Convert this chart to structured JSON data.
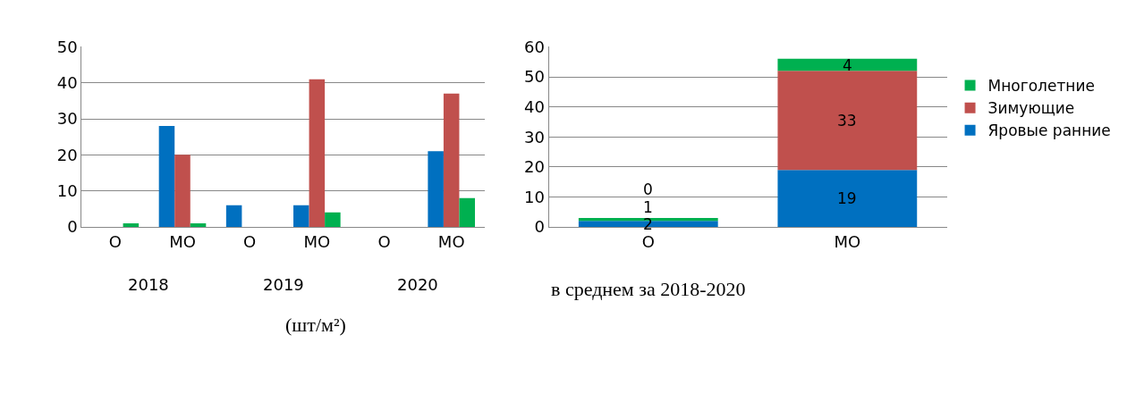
{
  "chart_data": [
    {
      "type": "bar",
      "xlabel": "(шт/м²)",
      "categories": [
        "О",
        "МО",
        "О",
        "МО",
        "О",
        "МО"
      ],
      "annotations": [
        "2018",
        "2019",
        "2020"
      ],
      "series": [
        {
          "color": "#0070c0",
          "values": [
            0,
            28,
            6,
            6,
            0,
            21
          ]
        },
        {
          "color": "#c0504d",
          "values": [
            0,
            20,
            0,
            41,
            0,
            37
          ]
        },
        {
          "color": "#00b050",
          "values": [
            1,
            1,
            0,
            4,
            0,
            8
          ]
        }
      ],
      "ylim": [
        0,
        50
      ],
      "yticks": [
        0,
        10,
        20,
        30,
        40,
        50
      ],
      "grid": "y",
      "legend": false
    },
    {
      "type": "bar",
      "stacked": true,
      "xlabel": "в среднем за 2018-2020",
      "categories": [
        "О",
        "МО"
      ],
      "series": [
        {
          "name": "Яровые ранние",
          "color": "#0070c0",
          "values": [
            2,
            19
          ],
          "value_labels": [
            "2",
            "19"
          ]
        },
        {
          "name": "Зимующие",
          "color": "#c0504d",
          "values": [
            0,
            33
          ],
          "value_labels": [
            "0",
            "33"
          ]
        },
        {
          "name": "Многолетние",
          "color": "#00b050",
          "values": [
            1,
            4
          ],
          "value_labels": [
            "1",
            "4"
          ]
        }
      ],
      "ylim": [
        0,
        60
      ],
      "yticks": [
        0,
        10,
        20,
        30,
        40,
        50,
        60
      ],
      "grid": "y",
      "legend": "right"
    }
  ]
}
